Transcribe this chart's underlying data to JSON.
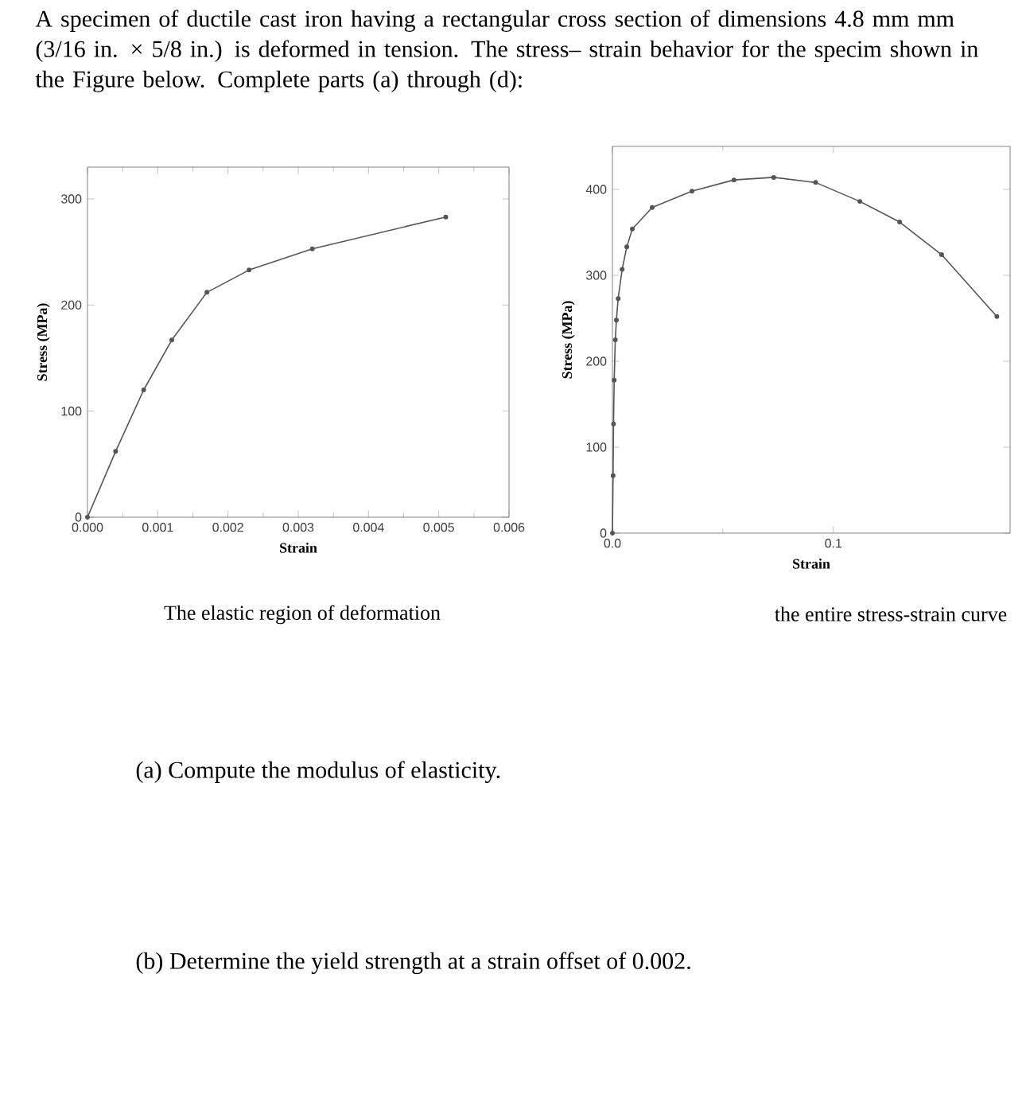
{
  "chart_data": [
    {
      "type": "line",
      "xlabel": "Strain",
      "ylabel": "Stress (MPa)",
      "color": "#555555",
      "marker": "circle",
      "line_style": "solid",
      "x": [
        0,
        0.0004,
        0.0008,
        0.0012,
        0.0017,
        0.0023,
        0.0032,
        0.0051
      ],
      "values": [
        0,
        62,
        120,
        167,
        212,
        233,
        253,
        283
      ],
      "xlim": [
        0,
        0.006
      ],
      "ylim": [
        0,
        330
      ],
      "xticks": [
        {
          "value": 0,
          "label": "0.000"
        },
        {
          "value": 0.001,
          "label": "0.001"
        },
        {
          "value": 0.002,
          "label": "0.002"
        },
        {
          "value": 0.003,
          "label": "0.003"
        },
        {
          "value": 0.004,
          "label": "0.004"
        },
        {
          "value": 0.005,
          "label": "0.005"
        },
        {
          "value": 0.006,
          "label": "0.006"
        }
      ],
      "yticks": [
        0,
        100,
        200,
        300
      ],
      "annotations": [
        "A specimen of ductile cast iron having a rectangular cross section of dimensions 4.8 mm mm (3/16 in. × 5/8 in.) is deformed in tension. The stress– strain behavior for the specim shown in the Figure below. Complete parts (a) through (d):",
        "The elastic region of deformation",
        "(a) Compute the modulus of elasticity.",
        "(b) Determine the yield strength at a strain offset of 0.002."
      ]
    },
    {
      "type": "line",
      "xlabel": "Strain",
      "ylabel": "Stress (MPa)",
      "color": "#555555",
      "marker": "circle",
      "line_style": "solid",
      "x": [
        0,
        0.0003,
        0.0005,
        0.0008,
        0.0013,
        0.0018,
        0.0026,
        0.0044,
        0.0065,
        0.009,
        0.018,
        0.036,
        0.055,
        0.073,
        0.092,
        0.112,
        0.13,
        0.149,
        0.174
      ],
      "values": [
        0,
        67,
        127,
        178,
        225,
        248,
        273,
        307,
        333,
        354,
        379,
        398,
        411,
        414,
        408,
        386,
        362,
        324,
        252
      ],
      "xlim": [
        0,
        0.18
      ],
      "ylim": [
        0,
        450
      ],
      "xticks": [
        {
          "value": 0,
          "label": "0.0"
        },
        {
          "value": 0.1,
          "label": "0.1"
        }
      ],
      "yticks": [
        0,
        100,
        200,
        300,
        400
      ],
      "annotations": [
        "the entire stress-strain curve"
      ]
    }
  ]
}
